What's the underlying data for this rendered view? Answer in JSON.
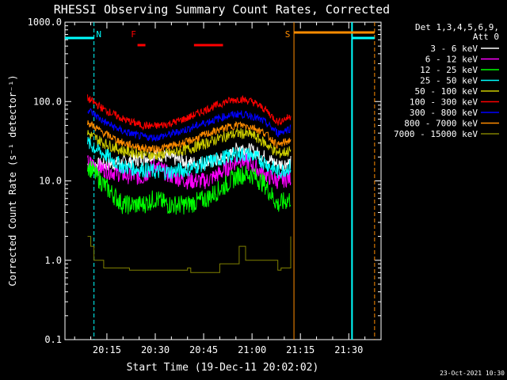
{
  "colors": {
    "background": "#000000",
    "foreground": "#ffffff",
    "marker_cyan": "#00ffff",
    "marker_orange": "#ff8c00",
    "marker_red": "#ff0000"
  },
  "chart_data": {
    "type": "line",
    "title": "RHESSI Observing Summary Count Rates, Corrected",
    "ylabel": "Corrected Count Rate (s⁻¹ detector⁻¹)",
    "xlabel": "Start Time (19-Dec-11 20:02:02)",
    "yscale": "log",
    "ylim": [
      0.1,
      1000
    ],
    "xlim_minutes_after_20_00": [
      2,
      100
    ],
    "y_ticks": [
      {
        "value": 1000,
        "label": "1000.0"
      },
      {
        "value": 100,
        "label": "100.0"
      },
      {
        "value": 10,
        "label": "10.0"
      },
      {
        "value": 1,
        "label": "1.0"
      },
      {
        "value": 0.1,
        "label": "0.1"
      }
    ],
    "x_ticks": [
      {
        "value": 15,
        "label": "20:15"
      },
      {
        "value": 30,
        "label": "20:30"
      },
      {
        "value": 45,
        "label": "20:45"
      },
      {
        "value": 60,
        "label": "21:00"
      },
      {
        "value": 75,
        "label": "21:15"
      },
      {
        "value": 90,
        "label": "21:30"
      }
    ],
    "legend": {
      "placement": "right",
      "header": [
        "Det 1,3,4,5,6,9,",
        "Att 0"
      ],
      "entries": [
        {
          "label": "3 - 6 keV",
          "color": "#ffffff"
        },
        {
          "label": "6 - 12 keV",
          "color": "#ff00ff"
        },
        {
          "label": "12 - 25 keV",
          "color": "#00ff00"
        },
        {
          "label": "25 - 50 keV",
          "color": "#00ffff"
        },
        {
          "label": "50 - 100 keV",
          "color": "#cccc00"
        },
        {
          "label": "100 - 300 keV",
          "color": "#ff0000"
        },
        {
          "label": "300 - 800 keV",
          "color": "#0000ff"
        },
        {
          "label": "800 - 7000 keV",
          "color": "#ff8c00"
        },
        {
          "label": "7000 - 15000 keV",
          "color": "#808000"
        }
      ]
    },
    "annotations": [
      {
        "label": "N",
        "time_min": 11,
        "color": "#00ffff"
      },
      {
        "label": "F",
        "time_min": 24,
        "color": "#ff0000"
      },
      {
        "label": "S",
        "time_min": 73,
        "color": "#ff8c00"
      }
    ],
    "time_range_min": [
      9,
      73
    ],
    "series": [
      {
        "name": "3 - 6 keV",
        "x": [
          9,
          14,
          20,
          26,
          30,
          34,
          40,
          46,
          52,
          56,
          60,
          64,
          68,
          72
        ],
        "values": [
          16,
          16,
          17,
          19,
          22,
          20,
          17,
          17,
          19,
          27,
          24,
          20,
          16,
          17
        ]
      },
      {
        "name": "6 - 12 keV",
        "x": [
          9,
          14,
          20,
          26,
          30,
          34,
          40,
          46,
          52,
          56,
          60,
          64,
          68,
          72
        ],
        "values": [
          17,
          14,
          12,
          11,
          16,
          12,
          10,
          10,
          14,
          19,
          16,
          12,
          10,
          11
        ]
      },
      {
        "name": "12 - 25 keV",
        "x": [
          9,
          14,
          20,
          26,
          30,
          34,
          40,
          46,
          52,
          56,
          60,
          64,
          68,
          72
        ],
        "values": [
          16,
          9,
          5,
          5,
          6,
          5,
          5,
          6,
          9,
          12,
          12,
          9,
          5,
          6
        ]
      },
      {
        "name": "25 - 50 keV",
        "x": [
          9,
          14,
          20,
          26,
          30,
          34,
          40,
          46,
          52,
          56,
          60,
          64,
          68,
          72
        ],
        "values": [
          30,
          22,
          15,
          14,
          13,
          13,
          14,
          17,
          20,
          22,
          21,
          17,
          13,
          15
        ]
      },
      {
        "name": "50 - 100 keV",
        "x": [
          9,
          14,
          20,
          26,
          30,
          34,
          40,
          46,
          52,
          56,
          60,
          64,
          68,
          72
        ],
        "values": [
          40,
          30,
          24,
          22,
          21,
          22,
          25,
          30,
          37,
          40,
          38,
          30,
          22,
          24
        ]
      },
      {
        "name": "100 - 300 keV",
        "x": [
          9,
          14,
          20,
          26,
          30,
          34,
          40,
          46,
          52,
          56,
          60,
          64,
          68,
          72
        ],
        "values": [
          110,
          80,
          60,
          50,
          49,
          52,
          62,
          80,
          100,
          108,
          100,
          80,
          55,
          65
        ]
      },
      {
        "name": "300 - 800 keV",
        "x": [
          9,
          14,
          20,
          26,
          30,
          34,
          40,
          46,
          52,
          56,
          60,
          64,
          68,
          72
        ],
        "values": [
          80,
          56,
          42,
          36,
          35,
          38,
          45,
          55,
          66,
          70,
          66,
          55,
          40,
          46
        ]
      },
      {
        "name": "800 - 7000 keV",
        "x": [
          9,
          14,
          20,
          26,
          30,
          34,
          40,
          46,
          52,
          56,
          60,
          64,
          68,
          72
        ],
        "values": [
          55,
          40,
          30,
          26,
          25,
          27,
          31,
          39,
          47,
          51,
          48,
          40,
          28,
          33
        ]
      },
      {
        "name": "7000 - 15000 keV",
        "x": [
          9,
          10,
          11,
          12,
          13,
          14,
          22,
          40,
          41,
          50,
          54,
          56,
          58,
          68,
          69,
          72
        ],
        "values": [
          2,
          1.5,
          1,
          1,
          1,
          0.8,
          0.75,
          0.8,
          0.7,
          0.9,
          0.9,
          1.5,
          1,
          0.75,
          0.8,
          2
        ]
      }
    ]
  },
  "footer": {
    "date": "23-Oct-2021 10:30"
  }
}
